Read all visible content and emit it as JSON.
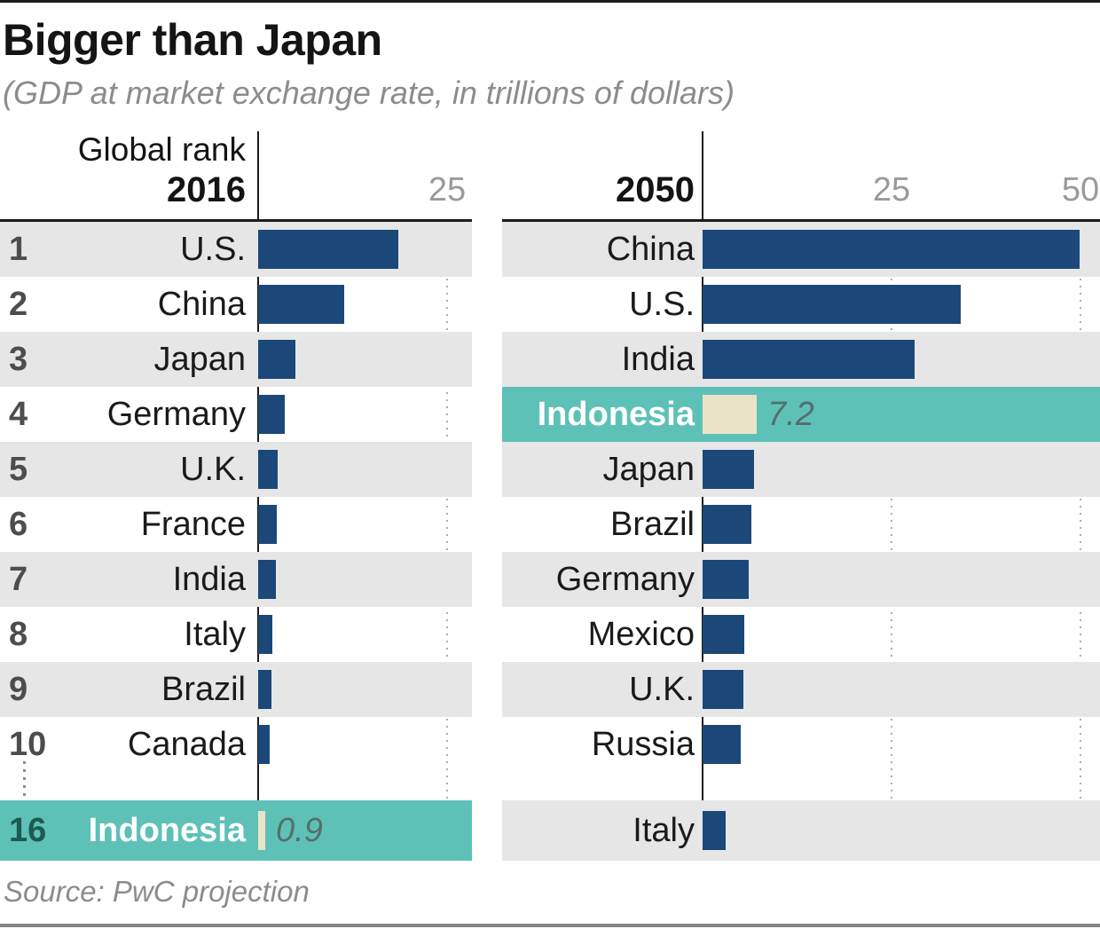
{
  "header": {
    "title": "Bigger than Japan",
    "subtitle": "(GDP at market exchange rate, in trillions of dollars)"
  },
  "source": "Source: PwC projection",
  "colors": {
    "bar_navy": "#1b4878",
    "highlight_teal": "#5ec1b8",
    "highlight_bar_cream": "#ebe3c7",
    "band_gray": "#e6e6e6",
    "rank_gray": "#4d4d4d",
    "rank_highlight_teal": "#1d5a52",
    "value_label_color": "#53706b",
    "tick_gray": "#9a9a9a",
    "axis_black": "#1c1c1c"
  },
  "chart_data": [
    {
      "type": "bar",
      "panel_label": "2016",
      "rank_header": "Global rank",
      "axis_ticks": [
        "25"
      ],
      "xlim": [
        0,
        28.2
      ],
      "grid": "dotted-vertical",
      "rows": [
        {
          "rank": "1",
          "label": "U.S.",
          "value": 18.6
        },
        {
          "rank": "2",
          "label": "China",
          "value": 11.4
        },
        {
          "rank": "3",
          "label": "Japan",
          "value": 4.9
        },
        {
          "rank": "4",
          "label": "Germany",
          "value": 3.5
        },
        {
          "rank": "5",
          "label": "U.K.",
          "value": 2.6
        },
        {
          "rank": "6",
          "label": "France",
          "value": 2.5
        },
        {
          "rank": "7",
          "label": "India",
          "value": 2.3
        },
        {
          "rank": "8",
          "label": "Italy",
          "value": 1.9
        },
        {
          "rank": "9",
          "label": "Brazil",
          "value": 1.8
        },
        {
          "rank": "10",
          "label": "Canada",
          "value": 1.5
        },
        {
          "rank": "16",
          "label": "Indonesia",
          "value": 0.9,
          "value_label": "0.9",
          "highlight": true,
          "gap_before": true
        }
      ]
    },
    {
      "type": "bar",
      "panel_label": "2050",
      "axis_ticks": [
        "25",
        "50"
      ],
      "xlim": [
        0,
        52.6
      ],
      "grid": "dotted-vertical",
      "rows": [
        {
          "label": "China",
          "value": 49.9
        },
        {
          "label": "U.S.",
          "value": 34.1
        },
        {
          "label": "India",
          "value": 28.0
        },
        {
          "label": "Indonesia",
          "value": 7.2,
          "value_label": "7.2",
          "highlight": true
        },
        {
          "label": "Japan",
          "value": 6.8
        },
        {
          "label": "Brazil",
          "value": 6.5
        },
        {
          "label": "Germany",
          "value": 6.1
        },
        {
          "label": "Mexico",
          "value": 5.5
        },
        {
          "label": "U.K.",
          "value": 5.4
        },
        {
          "label": "Russia",
          "value": 5.1
        },
        {
          "label": "Italy",
          "value": 3.1,
          "gap_before": true
        }
      ]
    }
  ]
}
